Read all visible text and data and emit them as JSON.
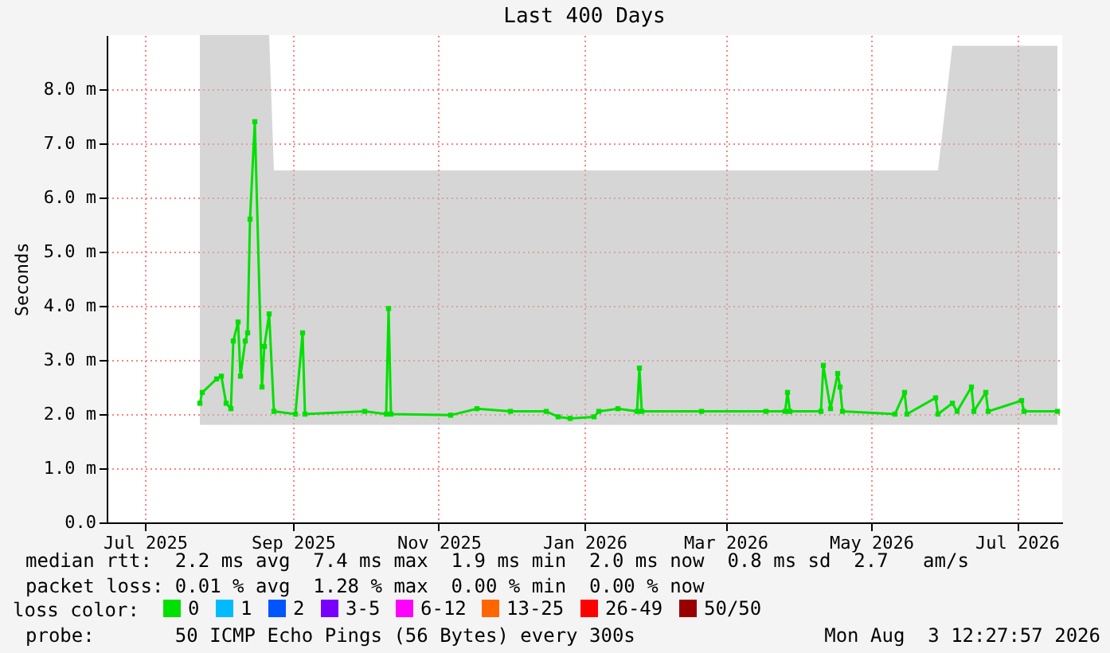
{
  "chart_data": {
    "type": "line",
    "title": "Last 400 Days",
    "ylabel": "Seconds",
    "legend_title": "loss color:",
    "legend": "bottom",
    "grid": true,
    "marker": "square",
    "xlim": [
      "2025-06-29",
      "2026-08-03"
    ],
    "xticks": [
      {
        "value": "2025-07-15",
        "label": "Jul 2025"
      },
      {
        "value": "2025-09-15",
        "label": "Sep 2025"
      },
      {
        "value": "2025-11-15",
        "label": "Nov 2025"
      },
      {
        "value": "2026-01-15",
        "label": "Jan 2026"
      },
      {
        "value": "2026-03-15",
        "label": "Mar 2026"
      },
      {
        "value": "2026-05-15",
        "label": "May 2026"
      },
      {
        "value": "2026-07-15",
        "label": "Jul 2026"
      }
    ],
    "ylim": [
      0,
      9
    ],
    "yticks": [
      {
        "value": 0,
        "label": "0.0"
      },
      {
        "value": 1,
        "label": "1.0 m"
      },
      {
        "value": 2,
        "label": "2.0 m"
      },
      {
        "value": 3,
        "label": "3.0 m"
      },
      {
        "value": 4,
        "label": "4.0 m"
      },
      {
        "value": 5,
        "label": "5.0 m"
      },
      {
        "value": 6,
        "label": "6.0 m"
      },
      {
        "value": 7,
        "label": "7.0 m"
      },
      {
        "value": 8,
        "label": "8.0 m"
      }
    ],
    "x": [
      "2025-08-07",
      "2025-08-08",
      "2025-08-14",
      "2025-08-16",
      "2025-08-18",
      "2025-08-20",
      "2025-08-21",
      "2025-08-23",
      "2025-08-24",
      "2025-08-26",
      "2025-08-27",
      "2025-08-28",
      "2025-08-30",
      "2025-09-02",
      "2025-09-03",
      "2025-09-05",
      "2025-09-07",
      "2025-09-16",
      "2025-09-19",
      "2025-09-20",
      "2025-10-15",
      "2025-10-24",
      "2025-10-25",
      "2025-10-26",
      "2025-11-20",
      "2025-12-01",
      "2025-12-15",
      "2025-12-30",
      "2026-01-04",
      "2026-01-09",
      "2026-01-19",
      "2026-01-21",
      "2026-01-29",
      "2026-02-06",
      "2026-02-07",
      "2026-02-08",
      "2026-03-05",
      "2026-04-01",
      "2026-04-09",
      "2026-04-10",
      "2026-04-11",
      "2026-04-24",
      "2026-04-25",
      "2026-04-28",
      "2026-05-01",
      "2026-05-02",
      "2026-05-03",
      "2026-05-25",
      "2026-05-29",
      "2026-05-30",
      "2026-06-11",
      "2026-06-12",
      "2026-06-18",
      "2026-06-20",
      "2026-06-26",
      "2026-06-27",
      "2026-07-02",
      "2026-07-03",
      "2026-07-17",
      "2026-07-18",
      "2026-08-01"
    ],
    "series": [
      {
        "name": "0",
        "color": "#00e000",
        "values": [
          2.2,
          2.4,
          2.65,
          2.7,
          2.2,
          2.1,
          3.35,
          3.7,
          2.7,
          3.35,
          3.5,
          5.6,
          7.4,
          2.5,
          3.25,
          3.85,
          2.05,
          2.0,
          3.5,
          2.0,
          2.05,
          2.0,
          3.95,
          2.0,
          1.98,
          2.1,
          2.05,
          2.05,
          1.95,
          1.92,
          1.95,
          2.05,
          2.1,
          2.05,
          2.85,
          2.05,
          2.05,
          2.05,
          2.05,
          2.4,
          2.05,
          2.05,
          2.9,
          2.1,
          2.75,
          2.5,
          2.05,
          2.0,
          2.4,
          2.0,
          2.3,
          2.0,
          2.2,
          2.05,
          2.5,
          2.05,
          2.4,
          2.05,
          2.25,
          2.05,
          2.05
        ],
        "lower": [
          1.8,
          1.8,
          1.8,
          1.8,
          1.8,
          1.8,
          1.8,
          1.8,
          1.8,
          1.8,
          1.8,
          1.8,
          1.8,
          1.8,
          1.8,
          1.8,
          1.8,
          1.8,
          1.8,
          1.8,
          1.8,
          1.8,
          1.8,
          1.8,
          1.8,
          1.8,
          1.8,
          1.8,
          1.8,
          1.8,
          1.8,
          1.8,
          1.8,
          1.8,
          1.8,
          1.8,
          1.8,
          1.8,
          1.8,
          1.8,
          1.8,
          1.8,
          1.8,
          1.8,
          1.8,
          1.8,
          1.8,
          1.8,
          1.8,
          1.8,
          1.8,
          1.8,
          1.8,
          1.8,
          1.8,
          1.8,
          1.8,
          1.8,
          1.8,
          1.8,
          1.8
        ],
        "upper": [
          9,
          9,
          9,
          9,
          9,
          9,
          9,
          9,
          9,
          9,
          9,
          9,
          9,
          9,
          9,
          9,
          6.5,
          6.5,
          6.5,
          6.5,
          6.5,
          6.5,
          6.5,
          6.5,
          6.5,
          6.5,
          6.5,
          6.5,
          6.5,
          6.5,
          6.5,
          6.5,
          6.5,
          6.5,
          6.5,
          6.5,
          6.5,
          6.5,
          6.5,
          6.5,
          6.5,
          6.5,
          6.5,
          6.5,
          6.5,
          6.5,
          6.5,
          6.5,
          6.5,
          6.5,
          6.5,
          6.5,
          8.8,
          8.8,
          8.8,
          8.8,
          8.8,
          8.8,
          8.8,
          8.8,
          8.8
        ]
      },
      {
        "name": "1",
        "color": "#00bbff",
        "values": [
          null,
          null,
          null,
          null,
          null,
          null,
          null,
          null,
          null,
          null,
          null,
          null,
          null,
          null,
          null,
          null,
          null,
          null,
          null,
          null,
          null,
          null,
          null,
          null,
          null,
          null,
          null,
          null,
          null,
          null,
          null,
          null,
          null,
          null,
          null,
          null,
          null,
          null,
          null,
          null,
          null,
          null,
          null,
          null,
          null,
          null,
          null,
          null,
          null,
          null,
          null,
          null,
          null,
          null,
          null,
          null,
          null,
          null,
          null,
          null,
          null
        ]
      },
      {
        "name": "2",
        "color": "#0055ff",
        "values": [
          null,
          null,
          null,
          null,
          null,
          null,
          null,
          null,
          null,
          null,
          null,
          null,
          null,
          null,
          null,
          null,
          null,
          null,
          null,
          null,
          null,
          null,
          null,
          null,
          null,
          null,
          null,
          null,
          null,
          null,
          null,
          null,
          null,
          null,
          null,
          null,
          null,
          null,
          null,
          null,
          null,
          null,
          null,
          null,
          null,
          null,
          null,
          null,
          null,
          null,
          null,
          null,
          null,
          null,
          null,
          null,
          null,
          null,
          null,
          null,
          null
        ]
      },
      {
        "name": "3-5",
        "color": "#7700ff",
        "values": [
          null,
          null,
          null,
          null,
          null,
          null,
          null,
          null,
          null,
          null,
          null,
          null,
          null,
          null,
          null,
          null,
          null,
          null,
          null,
          null,
          null,
          null,
          null,
          null,
          null,
          null,
          null,
          null,
          null,
          null,
          null,
          null,
          null,
          null,
          null,
          null,
          null,
          null,
          null,
          null,
          null,
          null,
          null,
          null,
          null,
          null,
          null,
          null,
          null,
          null,
          null,
          null,
          null,
          null,
          null,
          null,
          null,
          null,
          null,
          null,
          null
        ]
      },
      {
        "name": "6-12",
        "color": "#ff00ff",
        "values": [
          null,
          null,
          null,
          null,
          null,
          null,
          null,
          null,
          null,
          null,
          null,
          null,
          null,
          null,
          null,
          null,
          null,
          null,
          null,
          null,
          null,
          null,
          null,
          null,
          null,
          null,
          null,
          null,
          null,
          null,
          null,
          null,
          null,
          null,
          null,
          null,
          null,
          null,
          null,
          null,
          null,
          null,
          null,
          null,
          null,
          null,
          null,
          null,
          null,
          null,
          null,
          null,
          null,
          null,
          null,
          null,
          null,
          null,
          null,
          null,
          null
        ]
      },
      {
        "name": "13-25",
        "color": "#ff6600",
        "values": [
          null,
          null,
          null,
          null,
          null,
          null,
          null,
          null,
          null,
          null,
          null,
          null,
          null,
          null,
          null,
          null,
          null,
          null,
          null,
          null,
          null,
          null,
          null,
          null,
          null,
          null,
          null,
          null,
          null,
          null,
          null,
          null,
          null,
          null,
          null,
          null,
          null,
          null,
          null,
          null,
          null,
          null,
          null,
          null,
          null,
          null,
          null,
          null,
          null,
          null,
          null,
          null,
          null,
          null,
          null,
          null,
          null,
          null,
          null,
          null,
          null
        ]
      },
      {
        "name": "26-49",
        "color": "#ff0000",
        "values": [
          null,
          null,
          null,
          null,
          null,
          null,
          null,
          null,
          null,
          null,
          null,
          null,
          null,
          null,
          null,
          null,
          null,
          null,
          null,
          null,
          null,
          null,
          null,
          null,
          null,
          null,
          null,
          null,
          null,
          null,
          null,
          null,
          null,
          null,
          null,
          null,
          null,
          null,
          null,
          null,
          null,
          null,
          null,
          null,
          null,
          null,
          null,
          null,
          null,
          null,
          null,
          null,
          null,
          null,
          null,
          null,
          null,
          null,
          null,
          null,
          null
        ]
      },
      {
        "name": "50/50",
        "color": "#990000",
        "values": [
          null,
          null,
          null,
          null,
          null,
          null,
          null,
          null,
          null,
          null,
          null,
          null,
          null,
          null,
          null,
          null,
          null,
          null,
          null,
          null,
          null,
          null,
          null,
          null,
          null,
          null,
          null,
          null,
          null,
          null,
          null,
          null,
          null,
          null,
          null,
          null,
          null,
          null,
          null,
          null,
          null,
          null,
          null,
          null,
          null,
          null,
          null,
          null,
          null,
          null,
          null,
          null,
          null,
          null,
          null,
          null,
          null,
          null,
          null,
          null,
          null
        ]
      }
    ],
    "annotations": [
      "median rtt:  2.2 ms avg  7.4 ms max  1.9 ms min  2.0 ms now  0.8 ms sd  2.7   am/s",
      "packet loss: 0.01 % avg  1.28 % max  0.00 % min  0.00 % now",
      "probe:       50 ICMP Echo Pings (56 Bytes) every 300s",
      "Mon Aug  3 12:27:57 2026"
    ]
  }
}
